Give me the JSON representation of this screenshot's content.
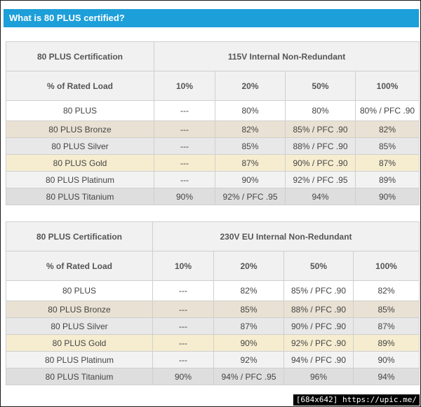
{
  "header": {
    "title": "What is 80 PLUS certified?"
  },
  "colors": {
    "header_bg": "#1d9fd9",
    "bronze": "#e9e1d3",
    "silver": "#e8e8e8",
    "gold": "#f6edd0",
    "platinum": "#f2f2f2",
    "titanium": "#dedede"
  },
  "tables": [
    {
      "cert_label": "80 PLUS Certification",
      "group_label": "115V Internal Non-Redundant",
      "load_label": "% of Rated Load",
      "loads": [
        "10%",
        "20%",
        "50%",
        "100%"
      ],
      "rows": [
        {
          "name": "80 PLUS",
          "values": [
            "---",
            "80%",
            "80%",
            "80% / PFC .90"
          ]
        },
        {
          "name": "80 PLUS Bronze",
          "values": [
            "---",
            "82%",
            "85% / PFC .90",
            "82%"
          ]
        },
        {
          "name": "80 PLUS Silver",
          "values": [
            "---",
            "85%",
            "88% / PFC .90",
            "85%"
          ]
        },
        {
          "name": "80 PLUS Gold",
          "values": [
            "---",
            "87%",
            "90% / PFC .90",
            "87%"
          ]
        },
        {
          "name": "80 PLUS Platinum",
          "values": [
            "---",
            "90%",
            "92% / PFC .95",
            "89%"
          ]
        },
        {
          "name": "80 PLUS Titanium",
          "values": [
            "90%",
            "92% / PFC .95",
            "94%",
            "90%"
          ]
        }
      ]
    },
    {
      "cert_label": "80 PLUS Certification",
      "group_label": "230V EU Internal Non-Redundant",
      "load_label": "% of Rated Load",
      "loads": [
        "10%",
        "20%",
        "50%",
        "100%"
      ],
      "rows": [
        {
          "name": "80 PLUS",
          "values": [
            "---",
            "82%",
            "85% / PFC .90",
            "82%"
          ]
        },
        {
          "name": "80 PLUS Bronze",
          "values": [
            "---",
            "85%",
            "88% / PFC .90",
            "85%"
          ]
        },
        {
          "name": "80 PLUS Silver",
          "values": [
            "---",
            "87%",
            "90% / PFC .90",
            "87%"
          ]
        },
        {
          "name": "80 PLUS Gold",
          "values": [
            "---",
            "90%",
            "92% / PFC .90",
            "89%"
          ]
        },
        {
          "name": "80 PLUS Platinum",
          "values": [
            "---",
            "92%",
            "94% / PFC .90",
            "90%"
          ]
        },
        {
          "name": "80 PLUS Titanium",
          "values": [
            "90%",
            "94% / PFC .95",
            "96%",
            "94%"
          ]
        }
      ]
    }
  ],
  "watermark": {
    "text": "[684x642] https://upic.me/"
  }
}
